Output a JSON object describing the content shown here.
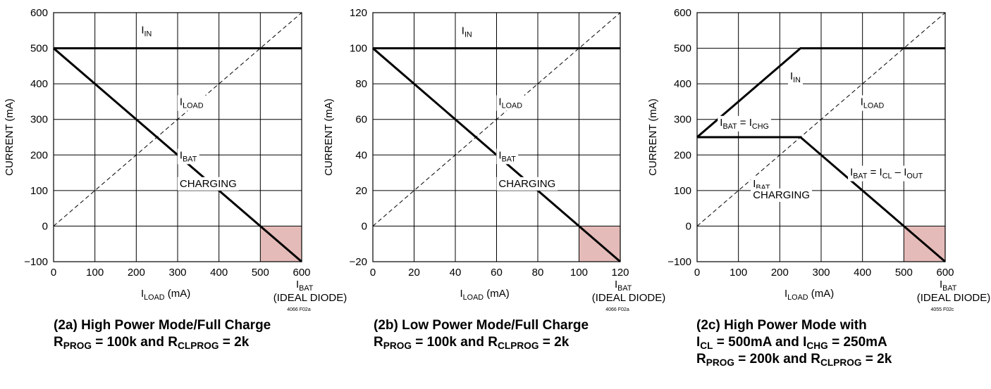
{
  "colors": {
    "ideal_diode_shade": "#e4bbb8",
    "grid": "#000000",
    "curve": "#000000"
  },
  "chart_data": [
    {
      "type": "line",
      "id": "2a",
      "ylabel": "CURRENT (mA)",
      "xlabel_main": "I",
      "xlabel_sub": "LOAD",
      "xlabel_unit": " (mA)",
      "xlim": [
        0,
        600
      ],
      "ylim": [
        -100,
        600
      ],
      "x_ticks": [
        "0",
        "100",
        "200",
        "300",
        "400",
        "500",
        "600"
      ],
      "y_ticks": [
        "600",
        "500",
        "400",
        "300",
        "200",
        "100",
        "0",
        "−100"
      ],
      "ideal_diode_region": {
        "x": [
          500,
          600
        ],
        "y": [
          -100,
          0
        ]
      },
      "ibat_axis_label": [
        "I",
        "BAT",
        "(IDEAL DIODE)"
      ],
      "code": "4066 F02a",
      "series": [
        {
          "name": "I_IN",
          "x": [
            0,
            600
          ],
          "y": [
            500,
            500
          ],
          "style": "solid"
        },
        {
          "name": "I_BAT",
          "x": [
            0,
            600
          ],
          "y": [
            500,
            -100
          ],
          "style": "solid"
        },
        {
          "name": "I_LOAD",
          "x": [
            0,
            600
          ],
          "y": [
            0,
            600
          ],
          "style": "dashed"
        }
      ],
      "annotations": [
        {
          "main": "I",
          "sub": "IN",
          "rest": "",
          "x": 212,
          "y": 542
        },
        {
          "main": "I",
          "sub": "LOAD",
          "rest": "",
          "x": 305,
          "y": 340
        },
        {
          "main": "I",
          "sub": "BAT",
          "rest": "",
          "x": 305,
          "y": 190
        },
        {
          "main": "CHARGING",
          "sub": "",
          "rest": "",
          "x": 305,
          "y": 110
        }
      ],
      "caption": [
        {
          "main": "(2a) High Power Mode/Full Charge",
          "sub": "",
          "rest": ""
        },
        {
          "main": "R",
          "sub": "PROG",
          "rest": " = 100k and R",
          "sub2": "CLPROG",
          "rest2": " = 2k"
        }
      ]
    },
    {
      "type": "line",
      "id": "2b",
      "ylabel": "CURRENT (mA)",
      "xlabel_main": "I",
      "xlabel_sub": "LOAD",
      "xlabel_unit": " (mA)",
      "xlim": [
        0,
        120
      ],
      "ylim": [
        -20,
        120
      ],
      "x_ticks": [
        "0",
        "20",
        "40",
        "60",
        "80",
        "100",
        "120"
      ],
      "y_ticks": [
        "120",
        "100",
        "80",
        "60",
        "40",
        "20",
        "0",
        "−20"
      ],
      "ideal_diode_region": {
        "x": [
          100,
          120
        ],
        "y": [
          -20,
          0
        ]
      },
      "ibat_axis_label": [
        "I",
        "BAT",
        "(IDEAL DIODE)"
      ],
      "code": "4066 F02a",
      "series": [
        {
          "name": "I_IN",
          "x": [
            0,
            120
          ],
          "y": [
            100,
            100
          ],
          "style": "solid"
        },
        {
          "name": "I_BAT",
          "x": [
            0,
            120
          ],
          "y": [
            100,
            -20
          ],
          "style": "solid"
        },
        {
          "name": "I_LOAD",
          "x": [
            0,
            120
          ],
          "y": [
            0,
            120
          ],
          "style": "dashed"
        }
      ],
      "annotations": [
        {
          "main": "I",
          "sub": "IN",
          "rest": "",
          "x": 43,
          "y": 108
        },
        {
          "main": "I",
          "sub": "LOAD",
          "rest": "",
          "x": 61,
          "y": 68
        },
        {
          "main": "I",
          "sub": "BAT",
          "rest": "",
          "x": 61,
          "y": 38
        },
        {
          "main": "CHARGING",
          "sub": "",
          "rest": "",
          "x": 61,
          "y": 22
        }
      ],
      "caption": [
        {
          "main": "(2b) Low Power Mode/Full Charge",
          "sub": "",
          "rest": ""
        },
        {
          "main": "R",
          "sub": "PROG",
          "rest": " = 100k and R",
          "sub2": "CLPROG",
          "rest2": " = 2k"
        }
      ]
    },
    {
      "type": "line",
      "id": "2c",
      "ylabel": "CURRENT (mA)",
      "xlabel_main": "I",
      "xlabel_sub": "LOAD",
      "xlabel_unit": " (mA)",
      "xlim": [
        0,
        600
      ],
      "ylim": [
        -100,
        600
      ],
      "x_ticks": [
        "0",
        "100",
        "200",
        "300",
        "400",
        "500",
        "600"
      ],
      "y_ticks": [
        "600",
        "500",
        "400",
        "300",
        "200",
        "100",
        "0",
        "−100"
      ],
      "ideal_diode_region": {
        "x": [
          500,
          600
        ],
        "y": [
          -100,
          0
        ]
      },
      "ibat_axis_label": [
        "I",
        "BAT",
        "(IDEAL DIODE)"
      ],
      "code": "4055 F02c",
      "series": [
        {
          "name": "I_IN",
          "x": [
            0,
            250,
            600
          ],
          "y": [
            250,
            500,
            500
          ],
          "style": "solid"
        },
        {
          "name": "I_BAT",
          "x": [
            0,
            250,
            600
          ],
          "y": [
            250,
            250,
            -100
          ],
          "style": "solid"
        },
        {
          "name": "I_LOAD",
          "x": [
            0,
            600
          ],
          "y": [
            0,
            600
          ],
          "style": "dashed"
        }
      ],
      "annotations": [
        {
          "main": "I",
          "sub": "IN",
          "rest": "",
          "x": 225,
          "y": 412
        },
        {
          "main": "I",
          "sub": "LOAD",
          "rest": "",
          "x": 395,
          "y": 340
        },
        {
          "main": "I",
          "sub": "BAT",
          "rest": " = I",
          "sub2": "CHG",
          "rest2": "",
          "x": 55,
          "y": 282
        },
        {
          "main": "I",
          "sub": "BAT",
          "rest": " = I",
          "sub2": "CL",
          "rest2": " – I",
          "sub3": "OUT",
          "x": 370,
          "y": 142
        },
        {
          "main": "I",
          "sub": "BAT",
          "rest": "",
          "x": 135,
          "y": 110
        },
        {
          "main": "CHARGING",
          "sub": "",
          "rest": "",
          "x": 135,
          "y": 78
        }
      ],
      "caption": [
        {
          "main": "(2c) High Power Mode with",
          "sub": "",
          "rest": ""
        },
        {
          "main": "I",
          "sub": "CL",
          "rest": " = 500mA and I",
          "sub2": "CHG",
          "rest2": " = 250mA"
        },
        {
          "main": "R",
          "sub": "PROG",
          "rest": " = 200k and R",
          "sub2": "CLPROG",
          "rest2": " = 2k"
        }
      ]
    }
  ]
}
